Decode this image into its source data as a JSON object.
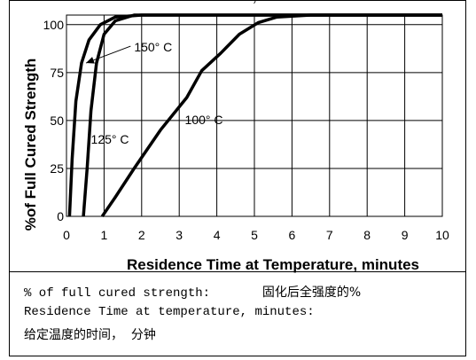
{
  "chart_data": {
    "type": "line",
    "xlabel": "Residence Time at Temperature, minutes",
    "ylabel": "%of Full Cured Strength",
    "xlim": [
      0,
      10
    ],
    "ylim": [
      0,
      105
    ],
    "x_ticks": [
      "0",
      "1",
      "2",
      "3",
      "4",
      "5",
      "6",
      "7",
      "8",
      "9",
      "10"
    ],
    "y_ticks": [
      "0",
      "25",
      "50",
      "75",
      "100"
    ],
    "grid": true,
    "series": [
      {
        "name": "150° C",
        "points": [
          [
            0.08,
            0
          ],
          [
            0.15,
            30
          ],
          [
            0.25,
            60
          ],
          [
            0.4,
            80
          ],
          [
            0.6,
            92
          ],
          [
            0.9,
            100
          ],
          [
            1.3,
            104
          ],
          [
            2,
            105
          ],
          [
            10,
            105
          ]
        ]
      },
      {
        "name": "125° C",
        "points": [
          [
            0.45,
            0
          ],
          [
            0.55,
            25
          ],
          [
            0.65,
            55
          ],
          [
            0.8,
            80
          ],
          [
            1.0,
            95
          ],
          [
            1.3,
            102
          ],
          [
            1.8,
            105
          ],
          [
            10,
            105
          ]
        ]
      },
      {
        "name": "100° C",
        "points": [
          [
            0.95,
            0
          ],
          [
            1.3,
            10
          ],
          [
            1.8,
            25
          ],
          [
            2.5,
            45
          ],
          [
            3.2,
            62
          ],
          [
            3.6,
            76
          ],
          [
            4.1,
            85
          ],
          [
            4.6,
            95
          ],
          [
            5.1,
            101
          ],
          [
            5.6,
            104
          ],
          [
            6.5,
            105
          ],
          [
            10,
            105
          ]
        ]
      }
    ],
    "annotations": [
      {
        "text": "150° C",
        "x": 1.8,
        "y": 86,
        "arrow_to": [
          0.52,
          80
        ]
      },
      {
        "text": "125° C",
        "x": 0.65,
        "y": 38
      },
      {
        "text": "100° C",
        "x": 3.15,
        "y": 48
      }
    ]
  },
  "caption": {
    "line1_en": "% of full cured strength:       ",
    "line1_cn": "固化后全强度的%",
    "line2_en": "Residence Time at temperature, minutes:",
    "line3_cn": "给定温度的时间，  分钟"
  }
}
